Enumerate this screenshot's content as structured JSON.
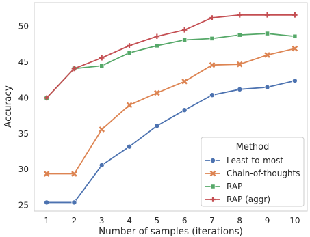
{
  "chart_data": {
    "type": "line",
    "xlabel": "Number of samples (iterations)",
    "ylabel": "Accuracy",
    "x": [
      1,
      2,
      3,
      4,
      5,
      6,
      7,
      8,
      9,
      10
    ],
    "xlim": [
      0.55,
      10.45
    ],
    "ylim": [
      24.2,
      53.3
    ],
    "yticks": [
      25,
      30,
      35,
      40,
      45,
      50
    ],
    "grid": false,
    "legend": {
      "title": "Method",
      "position": "lower-right"
    },
    "series": [
      {
        "name": "Least-to-most",
        "color": "#4c72b0",
        "marker": "circle",
        "values": [
          25.4,
          25.4,
          30.6,
          33.2,
          36.1,
          38.3,
          40.4,
          41.2,
          41.5,
          42.4
        ]
      },
      {
        "name": "Chain-of-thoughts",
        "color": "#dd8452",
        "marker": "x",
        "values": [
          29.4,
          29.4,
          35.6,
          39.0,
          40.7,
          42.3,
          44.6,
          44.7,
          46.0,
          46.9
        ]
      },
      {
        "name": "RAP",
        "color": "#55a868",
        "marker": "square",
        "values": [
          40.0,
          44.1,
          44.5,
          46.3,
          47.3,
          48.1,
          48.3,
          48.8,
          49.0,
          48.6
        ]
      },
      {
        "name": "RAP (aggr)",
        "color": "#c44e52",
        "marker": "plus",
        "values": [
          40.0,
          44.1,
          45.6,
          47.3,
          48.6,
          49.5,
          51.2,
          51.6,
          51.6,
          51.6
        ]
      }
    ]
  }
}
